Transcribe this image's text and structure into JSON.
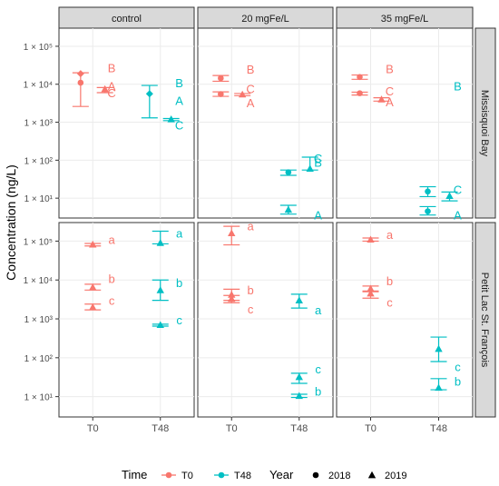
{
  "chart_data": {
    "type": "scatter",
    "ylabel": "Concentration (ng/L)",
    "y_scale": "log10",
    "ylim": [
      3,
      300000
    ],
    "y_ticks": [
      {
        "value": 10,
        "label": "1 × 10¹"
      },
      {
        "value": 100,
        "label": "1 × 10²"
      },
      {
        "value": 1000,
        "label": "1 × 10³"
      },
      {
        "value": 10000,
        "label": "1 × 10⁴"
      },
      {
        "value": 100000,
        "label": "1 × 10⁵"
      }
    ],
    "x_categories": [
      "T0",
      "T48"
    ],
    "columns": [
      "control",
      "20 mgFe/L",
      "35 mgFe/L"
    ],
    "rows": [
      "Missisquoi Bay",
      "Petit Lac St. François"
    ],
    "colors": {
      "T0": "#F8766D",
      "T48": "#00BFC4"
    },
    "legend": {
      "position": "bottom",
      "time_title": "Time",
      "time_items": [
        "T0",
        "T48"
      ],
      "year_title": "Year",
      "year_items": [
        {
          "label": "2018",
          "shape": "circle"
        },
        {
          "label": "2019",
          "shape": "triangle"
        }
      ]
    },
    "points": [
      {
        "row": 0,
        "col": 0,
        "time": "T0",
        "x": 1,
        "offset": -0.09,
        "shape": "circle",
        "y": 11000,
        "low": 2600,
        "high": 20000
      },
      {
        "row": 0,
        "col": 0,
        "time": "T0",
        "x": 1,
        "offset": -0.09,
        "shape": "diamond",
        "y": 19000,
        "low": null,
        "high": null
      },
      {
        "row": 0,
        "col": 0,
        "time": "T0",
        "x": 1,
        "offset": 0.09,
        "shape": "triangle",
        "y": 7500,
        "low": 6000,
        "high": 8200
      },
      {
        "row": 0,
        "col": 0,
        "time": "T48",
        "x": 2,
        "offset": -0.08,
        "shape": "diamond",
        "y": 5600,
        "low": 1300,
        "high": 9300
      },
      {
        "row": 0,
        "col": 0,
        "time": "T48",
        "x": 2,
        "offset": 0.08,
        "shape": "triangle",
        "y": 1200,
        "low": 1100,
        "high": 1250
      },
      {
        "row": 0,
        "col": 1,
        "time": "T0",
        "x": 1,
        "offset": -0.08,
        "shape": "circle",
        "y": 14500,
        "low": 12000,
        "high": 17000
      },
      {
        "row": 0,
        "col": 1,
        "time": "T0",
        "x": 1,
        "offset": -0.08,
        "shape": "circle",
        "y": 5500,
        "low": 4800,
        "high": 6300
      },
      {
        "row": 0,
        "col": 1,
        "time": "T0",
        "x": 1,
        "offset": 0.08,
        "shape": "triangle",
        "y": 5400,
        "low": 5000,
        "high": 5700
      },
      {
        "row": 0,
        "col": 1,
        "time": "T48",
        "x": 2,
        "offset": -0.08,
        "shape": "circle",
        "y": 48,
        "low": 40,
        "high": 55
      },
      {
        "row": 0,
        "col": 1,
        "time": "T48",
        "x": 2,
        "offset": -0.08,
        "shape": "triangle",
        "y": 5,
        "low": 3.8,
        "high": 6.5
      },
      {
        "row": 0,
        "col": 1,
        "time": "T48",
        "x": 2,
        "offset": 0.08,
        "shape": "triangle",
        "y": 60,
        "low": 55,
        "high": 120
      },
      {
        "row": 0,
        "col": 2,
        "time": "T0",
        "x": 1,
        "offset": -0.08,
        "shape": "circle",
        "y": 15500,
        "low": 13500,
        "high": 17500
      },
      {
        "row": 0,
        "col": 2,
        "time": "T0",
        "x": 1,
        "offset": -0.08,
        "shape": "circle",
        "y": 5800,
        "low": 5200,
        "high": 6200
      },
      {
        "row": 0,
        "col": 2,
        "time": "T0",
        "x": 1,
        "offset": 0.08,
        "shape": "triangle",
        "y": 4000,
        "low": 3600,
        "high": 4400
      },
      {
        "row": 0,
        "col": 2,
        "time": "T48",
        "x": 2,
        "offset": -0.08,
        "shape": "circle",
        "y": 15,
        "low": 11,
        "high": 20
      },
      {
        "row": 0,
        "col": 2,
        "time": "T48",
        "x": 2,
        "offset": -0.08,
        "shape": "circle",
        "y": 4.5,
        "low": 3.6,
        "high": 6
      },
      {
        "row": 0,
        "col": 2,
        "time": "T48",
        "x": 2,
        "offset": 0.08,
        "shape": "triangle",
        "y": 11.5,
        "low": 8.5,
        "high": 14.5
      },
      {
        "row": 1,
        "col": 0,
        "time": "T0",
        "x": 1,
        "offset": 0,
        "shape": "triangle",
        "y": 82000,
        "low": 75000,
        "high": 87000
      },
      {
        "row": 1,
        "col": 0,
        "time": "T0",
        "x": 1,
        "offset": 0,
        "shape": "triangle",
        "y": 6500,
        "low": 5500,
        "high": 7800
      },
      {
        "row": 1,
        "col": 0,
        "time": "T0",
        "x": 1,
        "offset": 0,
        "shape": "triangle",
        "y": 2000,
        "low": 1700,
        "high": 2400
      },
      {
        "row": 1,
        "col": 0,
        "time": "T48",
        "x": 2,
        "offset": 0,
        "shape": "triangle",
        "y": 90000,
        "low": 85000,
        "high": 180000
      },
      {
        "row": 1,
        "col": 0,
        "time": "T48",
        "x": 2,
        "offset": 0,
        "shape": "triangle",
        "y": 5500,
        "low": 3000,
        "high": 10000
      },
      {
        "row": 1,
        "col": 0,
        "time": "T48",
        "x": 2,
        "offset": 0,
        "shape": "triangle",
        "y": 700,
        "low": 650,
        "high": 730
      },
      {
        "row": 1,
        "col": 1,
        "time": "T0",
        "x": 1,
        "offset": 0,
        "shape": "triangle",
        "y": 160000,
        "low": 80000,
        "high": 240000
      },
      {
        "row": 1,
        "col": 1,
        "time": "T0",
        "x": 1,
        "offset": 0,
        "shape": "triangle",
        "y": 4200,
        "low": 3000,
        "high": 5800
      },
      {
        "row": 1,
        "col": 1,
        "time": "T0",
        "x": 1,
        "offset": 0,
        "shape": "triangle",
        "y": 3300,
        "low": 2600,
        "high": 4000
      },
      {
        "row": 1,
        "col": 1,
        "time": "T48",
        "x": 2,
        "offset": 0,
        "shape": "triangle",
        "y": 3000,
        "low": 1900,
        "high": 4300
      },
      {
        "row": 1,
        "col": 1,
        "time": "T48",
        "x": 2,
        "offset": 0,
        "shape": "triangle",
        "y": 32,
        "low": 22,
        "high": 40
      },
      {
        "row": 1,
        "col": 1,
        "time": "T48",
        "x": 2,
        "offset": 0,
        "shape": "triangle",
        "y": 10.5,
        "low": 9.5,
        "high": 11.5
      },
      {
        "row": 1,
        "col": 2,
        "time": "T0",
        "x": 1,
        "offset": 0,
        "shape": "triangle",
        "y": 110000,
        "low": 100000,
        "high": 120000
      },
      {
        "row": 1,
        "col": 2,
        "time": "T0",
        "x": 1,
        "offset": 0,
        "shape": "triangle",
        "y": 6000,
        "low": 5000,
        "high": 7000
      },
      {
        "row": 1,
        "col": 2,
        "time": "T0",
        "x": 1,
        "offset": 0,
        "shape": "triangle",
        "y": 4500,
        "low": 3400,
        "high": 5200
      },
      {
        "row": 1,
        "col": 2,
        "time": "T48",
        "x": 2,
        "offset": 0,
        "shape": "triangle",
        "y": 170,
        "low": 80,
        "high": 340
      },
      {
        "row": 1,
        "col": 2,
        "time": "T48",
        "x": 2,
        "offset": 0,
        "shape": "triangle",
        "y": 17,
        "low": 15,
        "high": 29
      }
    ],
    "letters": [
      {
        "row": 0,
        "col": 0,
        "time": "T0",
        "x": 1,
        "y": 27000,
        "text": "B"
      },
      {
        "row": 0,
        "col": 0,
        "time": "T0",
        "x": 1,
        "y": 9000,
        "text": "A"
      },
      {
        "row": 0,
        "col": 0,
        "time": "T0",
        "x": 1,
        "y": 6000,
        "text": "C"
      },
      {
        "row": 0,
        "col": 0,
        "time": "T48",
        "x": 2,
        "y": 11000,
        "text": "B"
      },
      {
        "row": 0,
        "col": 0,
        "time": "T48",
        "x": 2,
        "y": 3800,
        "text": "A"
      },
      {
        "row": 0,
        "col": 0,
        "time": "T48",
        "x": 2,
        "y": 850,
        "text": "C"
      },
      {
        "row": 0,
        "col": 1,
        "time": "T0",
        "x": 1,
        "y": 25000,
        "text": "B"
      },
      {
        "row": 0,
        "col": 1,
        "time": "T0",
        "x": 1,
        "y": 3300,
        "text": "A"
      },
      {
        "row": 0,
        "col": 1,
        "time": "T0",
        "x": 1,
        "y": 7800,
        "text": "C"
      },
      {
        "row": 0,
        "col": 1,
        "time": "T48",
        "x": 2,
        "y": 90,
        "text": "B"
      },
      {
        "row": 0,
        "col": 1,
        "time": "T48",
        "x": 2,
        "y": 3.6,
        "text": "A"
      },
      {
        "row": 0,
        "col": 1,
        "time": "T48",
        "x": 2,
        "y": 115,
        "text": "C"
      },
      {
        "row": 0,
        "col": 2,
        "time": "T0",
        "x": 1,
        "y": 26000,
        "text": "B"
      },
      {
        "row": 0,
        "col": 2,
        "time": "T0",
        "x": 1,
        "y": 3500,
        "text": "A"
      },
      {
        "row": 0,
        "col": 2,
        "time": "T0",
        "x": 1,
        "y": 6700,
        "text": "C"
      },
      {
        "row": 0,
        "col": 2,
        "time": "T48",
        "x": 2,
        "y": 9000,
        "text": "B",
        "note": ""
      },
      {
        "row": 0,
        "col": 2,
        "time": "T48",
        "x": 2,
        "y": 3.6,
        "text": "A"
      },
      {
        "row": 0,
        "col": 2,
        "time": "T48",
        "x": 2,
        "y": 17,
        "text": "C"
      },
      {
        "row": 1,
        "col": 0,
        "time": "T0",
        "x": 1,
        "y": 110000,
        "text": "a"
      },
      {
        "row": 1,
        "col": 0,
        "time": "T0",
        "x": 1,
        "y": 11000,
        "text": "b"
      },
      {
        "row": 1,
        "col": 0,
        "time": "T0",
        "x": 1,
        "y": 3000,
        "text": "c"
      },
      {
        "row": 1,
        "col": 0,
        "time": "T48",
        "x": 2,
        "y": 160000,
        "text": "a"
      },
      {
        "row": 1,
        "col": 0,
        "time": "T48",
        "x": 2,
        "y": 8500,
        "text": "b"
      },
      {
        "row": 1,
        "col": 0,
        "time": "T48",
        "x": 2,
        "y": 950,
        "text": "c"
      },
      {
        "row": 1,
        "col": 1,
        "time": "T0",
        "x": 1,
        "y": 250000,
        "text": "a"
      },
      {
        "row": 1,
        "col": 1,
        "time": "T0",
        "x": 1,
        "y": 5600,
        "text": "b"
      },
      {
        "row": 1,
        "col": 1,
        "time": "T0",
        "x": 1,
        "y": 1800,
        "text": "c"
      },
      {
        "row": 1,
        "col": 1,
        "time": "T48",
        "x": 2,
        "y": 1700,
        "text": "a"
      },
      {
        "row": 1,
        "col": 1,
        "time": "T48",
        "x": 2,
        "y": 52,
        "text": "c"
      },
      {
        "row": 1,
        "col": 1,
        "time": "T48",
        "x": 2,
        "y": 14,
        "text": "b"
      },
      {
        "row": 1,
        "col": 2,
        "time": "T0",
        "x": 1,
        "y": 150000,
        "text": "a"
      },
      {
        "row": 1,
        "col": 2,
        "time": "T0",
        "x": 1,
        "y": 9500,
        "text": "b"
      },
      {
        "row": 1,
        "col": 2,
        "time": "T0",
        "x": 1,
        "y": 2700,
        "text": "c"
      },
      {
        "row": 1,
        "col": 2,
        "time": "T48",
        "x": 2,
        "y": 60,
        "text": "c"
      },
      {
        "row": 1,
        "col": 2,
        "time": "T48",
        "x": 2,
        "y": 25,
        "text": "b"
      }
    ]
  }
}
